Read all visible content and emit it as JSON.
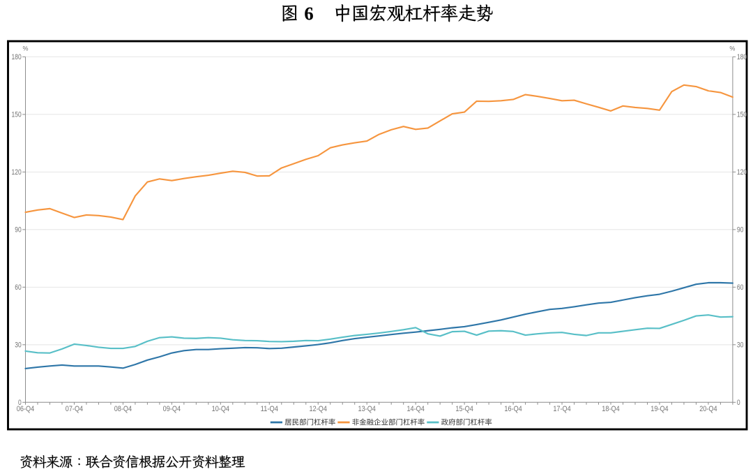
{
  "title": {
    "text": "图 6　中国宏观杠杆率走势"
  },
  "source_note": {
    "text": "资料来源：联合资信根据公开资料整理"
  },
  "colors": {
    "household": "#2E76A8",
    "corporate": "#F6953E",
    "government": "#58BFC7",
    "grid": "#E4E4E4",
    "axis": "#8C8C8C",
    "tick_label": "#737373",
    "legend_text": "#333333",
    "border": "#000000",
    "title_text": "#000000"
  },
  "chart_data": {
    "type": "line",
    "title": "图 6　中国宏观杠杆率走势",
    "x_categories": [
      "06-Q4",
      "07-Q1",
      "07-Q2",
      "07-Q3",
      "07-Q4",
      "08-Q1",
      "08-Q2",
      "08-Q3",
      "08-Q4",
      "09-Q1",
      "09-Q2",
      "09-Q3",
      "09-Q4",
      "10-Q1",
      "10-Q2",
      "10-Q3",
      "10-Q4",
      "11-Q1",
      "11-Q2",
      "11-Q3",
      "11-Q4",
      "12-Q1",
      "12-Q2",
      "12-Q3",
      "12-Q4",
      "13-Q1",
      "13-Q2",
      "13-Q3",
      "13-Q4",
      "14-Q1",
      "14-Q2",
      "14-Q3",
      "14-Q4",
      "15-Q1",
      "15-Q2",
      "15-Q3",
      "15-Q4",
      "16-Q1",
      "16-Q2",
      "16-Q3",
      "16-Q4",
      "17-Q1",
      "17-Q2",
      "17-Q3",
      "17-Q4",
      "18-Q1",
      "18-Q2",
      "18-Q3",
      "18-Q4",
      "19-Q1",
      "19-Q2",
      "19-Q3",
      "19-Q4",
      "20-Q1",
      "20-Q2",
      "20-Q3",
      "20-Q4",
      "21-Q1",
      "21-Q2"
    ],
    "x_tick_labels": [
      "06-Q4",
      "07-Q4",
      "08-Q4",
      "09-Q4",
      "10-Q4",
      "11-Q4",
      "12-Q4",
      "13-Q4",
      "14-Q4",
      "15-Q4",
      "16-Q4",
      "17-Q4",
      "18-Q4",
      "19-Q4",
      "20-Q4"
    ],
    "y_axis_unit": "%",
    "y_axis_unit_right": "%",
    "ylim": [
      0,
      180
    ],
    "y_ticks": [
      0,
      30,
      60,
      90,
      120,
      150,
      180
    ],
    "grid": true,
    "legend_position": "bottom",
    "series": [
      {
        "name": "居民部门杠杆率",
        "color": "#2E76A8",
        "values": [
          17.6,
          18.3,
          18.9,
          19.4,
          18.9,
          18.9,
          18.9,
          18.4,
          17.8,
          19.7,
          22.0,
          23.7,
          25.7,
          26.9,
          27.5,
          27.5,
          27.9,
          28.2,
          28.5,
          28.4,
          28.0,
          28.2,
          28.8,
          29.4,
          30.1,
          31.0,
          32.2,
          33.2,
          33.9,
          34.6,
          35.3,
          36.0,
          36.6,
          37.3,
          38.0,
          38.8,
          39.4,
          40.5,
          41.7,
          42.9,
          44.4,
          45.9,
          47.2,
          48.4,
          48.9,
          49.8,
          50.8,
          51.7,
          52.1,
          53.3,
          54.5,
          55.5,
          56.3,
          57.9,
          59.7,
          61.5,
          62.3,
          62.3,
          62.1
        ]
      },
      {
        "name": "非金融企业部门杠杆率",
        "color": "#F6953E",
        "values": [
          99.0,
          100.2,
          100.9,
          98.6,
          96.3,
          97.6,
          97.3,
          96.5,
          95.2,
          107.5,
          114.8,
          116.4,
          115.5,
          116.6,
          117.5,
          118.3,
          119.4,
          120.4,
          119.8,
          117.9,
          118.0,
          122.1,
          124.3,
          126.6,
          128.5,
          132.6,
          134.1,
          135.2,
          136.1,
          139.6,
          142.0,
          143.7,
          142.2,
          142.9,
          146.6,
          150.3,
          151.2,
          156.9,
          156.8,
          157.1,
          157.8,
          160.3,
          159.4,
          158.3,
          157.1,
          157.4,
          155.5,
          153.7,
          151.8,
          154.4,
          153.6,
          153.1,
          152.2,
          161.9,
          165.3,
          164.5,
          162.3,
          161.4,
          159.0
        ]
      },
      {
        "name": "政府部门杠杆率",
        "color": "#58BFC7",
        "values": [
          26.7,
          25.8,
          25.7,
          27.8,
          30.3,
          29.6,
          28.7,
          28.1,
          28.1,
          29.1,
          31.8,
          33.7,
          34.1,
          33.4,
          33.3,
          33.7,
          33.4,
          32.6,
          32.2,
          32.1,
          31.7,
          31.6,
          31.8,
          32.2,
          32.1,
          32.9,
          33.9,
          34.8,
          35.4,
          36.1,
          36.9,
          37.8,
          38.9,
          35.7,
          34.5,
          36.8,
          37.0,
          35.0,
          37.1,
          37.3,
          36.9,
          35.0,
          35.7,
          36.2,
          36.4,
          35.4,
          34.8,
          36.2,
          36.2,
          37.0,
          37.8,
          38.6,
          38.5,
          40.6,
          42.7,
          45.0,
          45.5,
          44.4,
          44.6
        ]
      }
    ]
  }
}
